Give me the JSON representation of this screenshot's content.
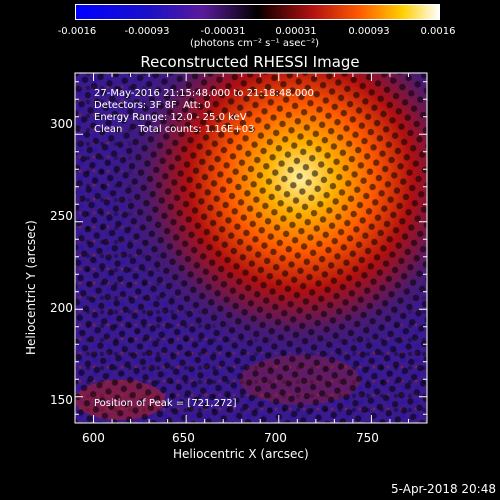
{
  "colorbar": {
    "ticks": [
      "-0.0016",
      "-0.00093",
      "-0.00031",
      "0.00031",
      "0.00093",
      "0.0016"
    ],
    "unit": "(photons cm⁻² s⁻¹ asec⁻²)"
  },
  "plot": {
    "title": "Reconstructed RHESSI Image",
    "info_lines": [
      "27-May-2016 21:15:48.000 to 21:18:48.000",
      "Detectors: 3F 8F  Att: 0",
      "Energy Range: 12.0 - 25.0 keV",
      "Clean     Total counts: 1.16E+03"
    ],
    "peak_label": "Position of Peak = [721,272]",
    "xlabel": "Heliocentric X (arcsec)",
    "ylabel": "Heliocentric Y (arcsec)",
    "xticks": [
      "600",
      "650",
      "700",
      "750"
    ],
    "yticks": [
      "150",
      "200",
      "250",
      "300"
    ]
  },
  "chart_data": {
    "type": "heatmap",
    "title": "Reconstructed RHESSI Image",
    "xlabel": "Heliocentric X (arcsec)",
    "ylabel": "Heliocentric Y (arcsec)",
    "xlim": [
      590,
      780
    ],
    "ylim": [
      135,
      335
    ],
    "zlim": [
      -0.0016,
      0.0016
    ],
    "peak": [
      721,
      272
    ],
    "colormap": "blue-purple-red-yellow-white"
  },
  "timestamp": "5-Apr-2018 20:48"
}
